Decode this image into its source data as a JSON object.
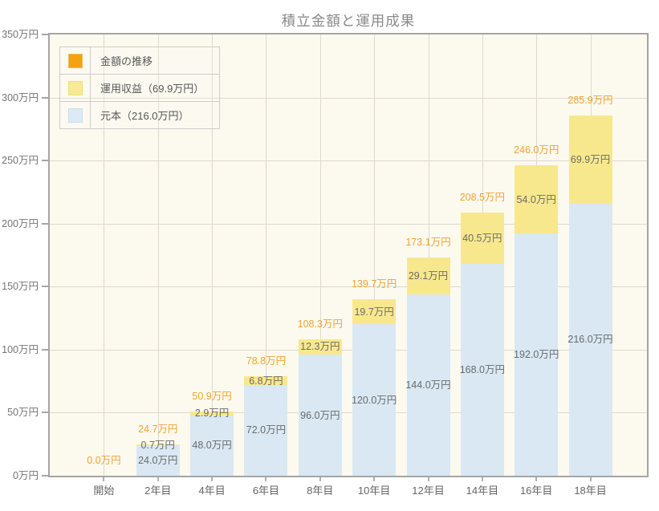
{
  "chart_data": {
    "type": "bar",
    "stacked": true,
    "title": "積立金額と運用成果",
    "unit": "万円",
    "grid": true,
    "categories": [
      "開始",
      "2年目",
      "4年目",
      "6年目",
      "8年目",
      "10年目",
      "12年目",
      "14年目",
      "16年目",
      "18年目"
    ],
    "series": [
      {
        "name": "元本（216.0万円）",
        "key": "principal",
        "color": "#d9e8f3",
        "values": [
          0,
          24.0,
          48.0,
          72.0,
          96.0,
          120.0,
          144.0,
          168.0,
          192.0,
          216.0
        ],
        "labels": [
          "",
          "24.0万円",
          "48.0万円",
          "72.0万円",
          "96.0万円",
          "120.0万円",
          "144.0万円",
          "168.0万円",
          "192.0万円",
          "216.0万円"
        ]
      },
      {
        "name": "運用収益（69.9万円）",
        "key": "yield",
        "color": "#f8e88d",
        "values": [
          0,
          0.7,
          2.9,
          6.8,
          12.3,
          19.7,
          29.1,
          40.5,
          54.0,
          69.9
        ],
        "labels": [
          "",
          "0.7万円",
          "2.9万円",
          "6.8万円",
          "12.3万円",
          "19.7万円",
          "29.1万円",
          "40.5万円",
          "54.0万円",
          "69.9万円"
        ]
      }
    ],
    "totals": {
      "name": "金額の推移",
      "values": [
        0.0,
        24.7,
        50.9,
        78.8,
        108.3,
        139.7,
        173.1,
        208.5,
        246.0,
        285.9
      ],
      "labels": [
        "0.0万円",
        "24.7万円",
        "50.9万円",
        "78.8万円",
        "108.3万円",
        "139.7万円",
        "173.1万円",
        "208.5万円",
        "246.0万円",
        "285.9万円"
      ],
      "text_color": "#f0a331"
    },
    "y_axis": {
      "min": 0,
      "max": 350,
      "tick_step": 50,
      "tick_labels": [
        "0万円",
        "50万円",
        "100万円",
        "150万円",
        "200万円",
        "250万円",
        "300万円",
        "350万円"
      ]
    },
    "legend": {
      "position": "top-left",
      "items": [
        {
          "label": "金額の推移",
          "swatch_color": "#f2a30f",
          "swatch_border": "#f2b95d"
        },
        {
          "label": "運用収益（69.9万円）",
          "swatch_color": "#f7e995",
          "swatch_border": "#efdf7a"
        },
        {
          "label": "元本（216.0万円）",
          "swatch_color": "#dceaf6",
          "swatch_border": "#c9ddef"
        }
      ]
    },
    "colors": {
      "plot_background": "#fcfaee",
      "gridline": "#ddd9cb",
      "frame": "#a5a5a5",
      "value_text": "#6b6b6b",
      "axis_text": "#757575",
      "title_text": "#8a8a8a"
    }
  }
}
